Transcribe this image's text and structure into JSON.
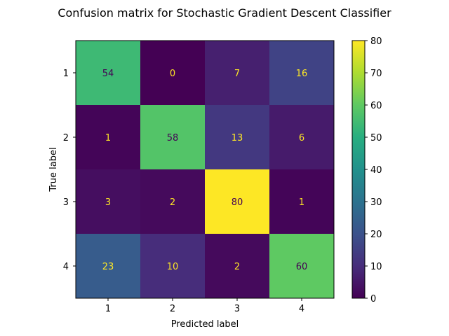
{
  "chart_data": {
    "type": "heatmap",
    "title": "Confusion matrix for Stochastic Gradient Descent Classifier",
    "xlabel": "Predicted label",
    "ylabel": "True label",
    "x_categories": [
      "1",
      "2",
      "3",
      "4"
    ],
    "y_categories": [
      "1",
      "2",
      "3",
      "4"
    ],
    "values": [
      [
        54,
        0,
        7,
        16
      ],
      [
        1,
        58,
        13,
        6
      ],
      [
        3,
        2,
        80,
        1
      ],
      [
        23,
        10,
        2,
        60
      ]
    ],
    "colormap": "viridis",
    "colorbar": {
      "range": [
        0,
        80
      ],
      "ticks": [
        "0",
        "10",
        "20",
        "30",
        "40",
        "50",
        "60",
        "70",
        "80"
      ]
    },
    "cell_text_colors": {
      "light": "#fde725",
      "dark": "#440154"
    }
  }
}
